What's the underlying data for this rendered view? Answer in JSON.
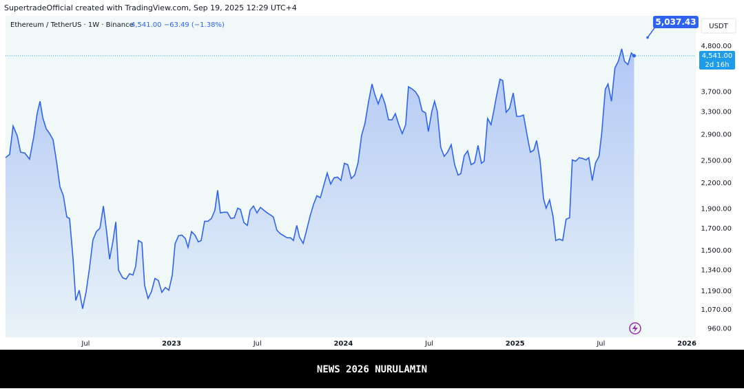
{
  "chart_data": {
    "type": "area",
    "attribution": "SupertradeOfficial created with TradingView.com, Sep 19, 2025 12:29 UTC+4",
    "title": "Ethereum / TetherUS · 1W · Binance",
    "price_change": "4,541.00 −63.49 (−1.38%)",
    "currency": "USDT",
    "countdown": "2d 16h",
    "footer": "NEWS 2026 NURULAMIN",
    "last_price": {
      "value": 4541,
      "label": "4,541.00"
    },
    "high_marker": {
      "value": 5037.43,
      "label": "5,037.43"
    },
    "log_scale": true,
    "grid": false,
    "series": [
      {
        "name": "ETHUSDT",
        "color": "#2e62f0",
        "x": [
          2022.033,
          2022.057,
          2022.077,
          2022.101,
          2022.121,
          2022.145,
          2022.173,
          2022.197,
          2022.218,
          2022.234,
          2022.25,
          2022.27,
          2022.29,
          2022.31,
          2022.33,
          2022.35,
          2022.37,
          2022.39,
          2022.406,
          2022.426,
          2022.442,
          2022.462,
          2022.482,
          2022.502,
          2022.522,
          2022.542,
          2022.562,
          2022.583,
          2022.603,
          2022.623,
          2022.639,
          2022.659,
          2022.675,
          2022.691,
          2022.715,
          2022.735,
          2022.755,
          2022.775,
          2022.791,
          2022.807,
          2022.827,
          2022.843,
          2022.863,
          2022.883,
          2022.903,
          2022.923,
          2022.943,
          2022.964,
          2022.984,
          2023.004,
          2023.02,
          2023.04,
          2023.06,
          2023.08,
          2023.096,
          2023.116,
          2023.136,
          2023.156,
          2023.172,
          2023.192,
          2023.212,
          2023.232,
          2023.252,
          2023.268,
          2023.284,
          2023.304,
          2023.324,
          2023.345,
          2023.365,
          2023.385,
          2023.401,
          2023.421,
          2023.441,
          2023.457,
          2023.477,
          2023.497,
          2023.517,
          2023.537,
          2023.557,
          2023.577,
          2023.593,
          2023.613,
          2023.633,
          2023.653,
          2023.673,
          2023.693,
          2023.709,
          2023.729,
          2023.745,
          2023.766,
          2023.786,
          2023.806,
          2023.826,
          2023.846,
          2023.866,
          2023.886,
          2023.906,
          2023.926,
          2023.946,
          2023.966,
          2023.986,
          2024.006,
          2024.026,
          2024.046,
          2024.066,
          2024.086,
          2024.106,
          2024.126,
          2024.147,
          2024.167,
          2024.183,
          2024.203,
          2024.223,
          2024.243,
          2024.263,
          2024.283,
          2024.303,
          2024.323,
          2024.343,
          2024.363,
          2024.379,
          2024.399,
          2024.419,
          2024.439,
          2024.459,
          2024.479,
          2024.495,
          2024.515,
          2024.531,
          2024.547,
          2024.567,
          2024.587,
          2024.607,
          2024.628,
          2024.648,
          2024.668,
          2024.684,
          2024.704,
          2024.724,
          2024.744,
          2024.764,
          2024.784,
          2024.804,
          2024.82,
          2024.84,
          2024.86,
          2024.876,
          2024.892,
          2024.912,
          2024.928,
          2024.948,
          2024.968,
          2024.989,
          2025.009,
          2025.029,
          2025.049,
          2025.069,
          2025.089,
          2025.109,
          2025.125,
          2025.145,
          2025.165,
          2025.181,
          2025.201,
          2025.221,
          2025.237,
          2025.257,
          2025.277,
          2025.297,
          2025.317,
          2025.333,
          2025.353,
          2025.373,
          2025.393,
          2025.413,
          2025.429,
          2025.449,
          2025.469,
          2025.489,
          2025.505,
          2025.525,
          2025.541,
          2025.561,
          2025.581,
          2025.601,
          2025.621,
          2025.637,
          2025.657,
          2025.677,
          2025.693
        ],
        "values": [
          2542,
          2592,
          3044,
          2882,
          2623,
          2612,
          2522,
          2859,
          3281,
          3506,
          3191,
          2997,
          2916,
          2815,
          2492,
          2155,
          2048,
          1813,
          1799,
          1433,
          1128,
          1196,
          1076,
          1182,
          1356,
          1593,
          1670,
          1703,
          1931,
          1650,
          1427,
          1587,
          1764,
          1341,
          1284,
          1274,
          1314,
          1304,
          1372,
          1587,
          1568,
          1230,
          1141,
          1187,
          1279,
          1264,
          1182,
          1215,
          1196,
          1304,
          1556,
          1631,
          1637,
          1606,
          1526,
          1670,
          1637,
          1575,
          1587,
          1771,
          1771,
          1799,
          1886,
          2113,
          1857,
          1864,
          1864,
          1799,
          1806,
          1908,
          1893,
          1757,
          1730,
          1886,
          1931,
          1857,
          1916,
          1886,
          1857,
          1835,
          1813,
          1683,
          1650,
          1631,
          1612,
          1612,
          1587,
          1730,
          1618,
          1562,
          1683,
          1821,
          1946,
          2048,
          2024,
          2172,
          2331,
          2189,
          2268,
          2277,
          2233,
          2463,
          2444,
          2259,
          2304,
          2473,
          2882,
          3093,
          3506,
          3868,
          3647,
          3452,
          3647,
          3452,
          3154,
          3154,
          3267,
          3068,
          2916,
          3068,
          3808,
          3763,
          3705,
          3590,
          3319,
          3281,
          2951,
          3306,
          3506,
          3306,
          2696,
          2562,
          2623,
          2739,
          2444,
          2304,
          2322,
          2572,
          2643,
          2444,
          2473,
          2728,
          2463,
          2492,
          3179,
          3068,
          3319,
          3618,
          3976,
          3945,
          3293,
          3371,
          3676,
          3217,
          3217,
          3242,
          2905,
          2623,
          2654,
          2804,
          2512,
          2016,
          1908,
          2000,
          1821,
          1587,
          1600,
          1587,
          1792,
          1806,
          2512,
          2492,
          2542,
          2532,
          2512,
          2542,
          2233,
          2473,
          2562,
          2939,
          3748,
          3868,
          3506,
          4234,
          4403,
          4725,
          4403,
          4317,
          4615,
          4541
        ]
      }
    ],
    "xlim": [
      2022.033,
      2026.052
    ],
    "xticks": [
      {
        "value": 2022.5,
        "label": "Jul"
      },
      2023,
      {
        "value": 2023.5,
        "label": "Jul"
      },
      2024,
      {
        "value": 2024.5,
        "label": "Jul"
      },
      2025,
      {
        "value": 2025.5,
        "label": "Jul"
      },
      2026
    ],
    "ylim": [
      915,
      5700
    ],
    "yticks": [
      {
        "value": 960,
        "label": "960.00"
      },
      {
        "value": 1070,
        "label": "1,070.00"
      },
      {
        "value": 1190,
        "label": "1,190.00"
      },
      {
        "value": 1340,
        "label": "1,340.00"
      },
      {
        "value": 1500,
        "label": "1,500.00"
      },
      {
        "value": 1700,
        "label": "1,700.00"
      },
      {
        "value": 1900,
        "label": "1,900.00"
      },
      {
        "value": 2200,
        "label": "2,200.00"
      },
      {
        "value": 2500,
        "label": "2,500.00"
      },
      {
        "value": 2900,
        "label": "2,900.00"
      },
      {
        "value": 3300,
        "label": "3,300.00"
      },
      {
        "value": 3700,
        "label": "3,700.00"
      },
      {
        "value": 4800,
        "label": "4,800.00"
      }
    ]
  }
}
